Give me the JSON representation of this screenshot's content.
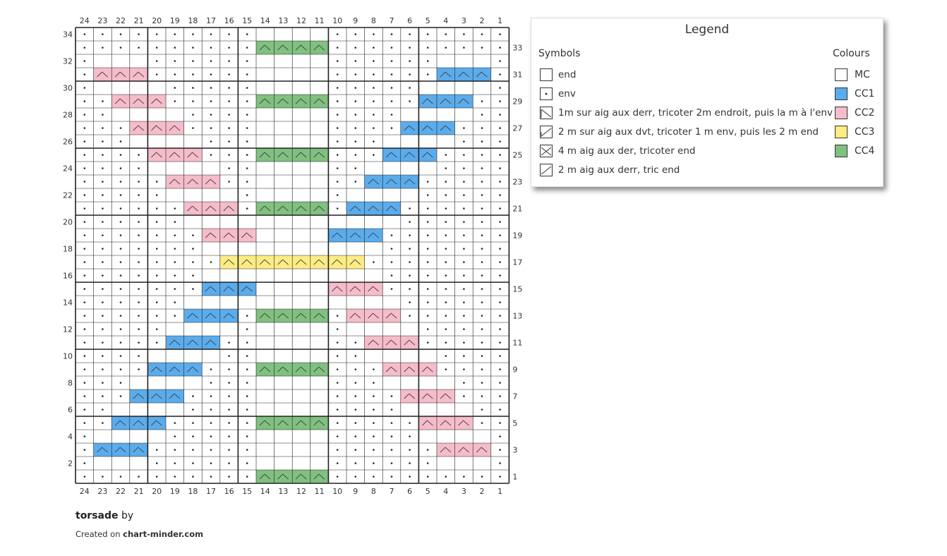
{
  "chart": {
    "columns": 24,
    "rows": 34,
    "column_numbers": [
      "24",
      "23",
      "22",
      "21",
      "20",
      "19",
      "18",
      "17",
      "16",
      "15",
      "14",
      "13",
      "12",
      "11",
      "10",
      "9",
      "8",
      "7",
      "6",
      "5",
      "4",
      "3",
      "2",
      "1"
    ],
    "left_row_numbers": [
      "34",
      "32",
      "30",
      "28",
      "26",
      "24",
      "22",
      "20",
      "18",
      "16",
      "14",
      "12",
      "10",
      "8",
      "6",
      "4",
      "2"
    ],
    "right_row_numbers": [
      "33",
      "31",
      "29",
      "27",
      "25",
      "23",
      "21",
      "19",
      "17",
      "15",
      "13",
      "11",
      "9",
      "7",
      "5",
      "3",
      "1"
    ],
    "colors": {
      "MC": "#ffffff",
      "CC1": "#5aacec",
      "CC2": "#f6bcc9",
      "CC3": "#fcec84",
      "CC4": "#80c080"
    }
  },
  "legend": {
    "title": "Legend",
    "symbols_heading": "Symbols",
    "colours_heading": "Colours",
    "symbols": [
      {
        "icon": "knit-square-icon",
        "label": "end"
      },
      {
        "icon": "purl-dot-icon",
        "label": "env"
      },
      {
        "icon": "cable-1-over-2-left-icon",
        "label": "1m sur aig aux derr, tricoter 2m endroit, puis la m à l'env"
      },
      {
        "icon": "cable-2-over-1-right-icon",
        "label": "2 m sur aig aux dvt, tricoter 1 m env, puis les 2 m end"
      },
      {
        "icon": "cable-4-back-icon",
        "label": "4 m aig aux der, tricoter end"
      },
      {
        "icon": "cable-2-back-icon",
        "label": "2 m aig aux derr, tric end"
      }
    ],
    "colours": [
      {
        "name": "MC",
        "hex": "#ffffff"
      },
      {
        "name": "CC1",
        "hex": "#5aacec"
      },
      {
        "name": "CC2",
        "hex": "#f6bcc9"
      },
      {
        "name": "CC3",
        "hex": "#fcec84"
      },
      {
        "name": "CC4",
        "hex": "#80c080"
      }
    ]
  },
  "footer": {
    "title": "torsade",
    "by": "by",
    "created_prefix": "Created on",
    "site": "chart-minder.com"
  }
}
